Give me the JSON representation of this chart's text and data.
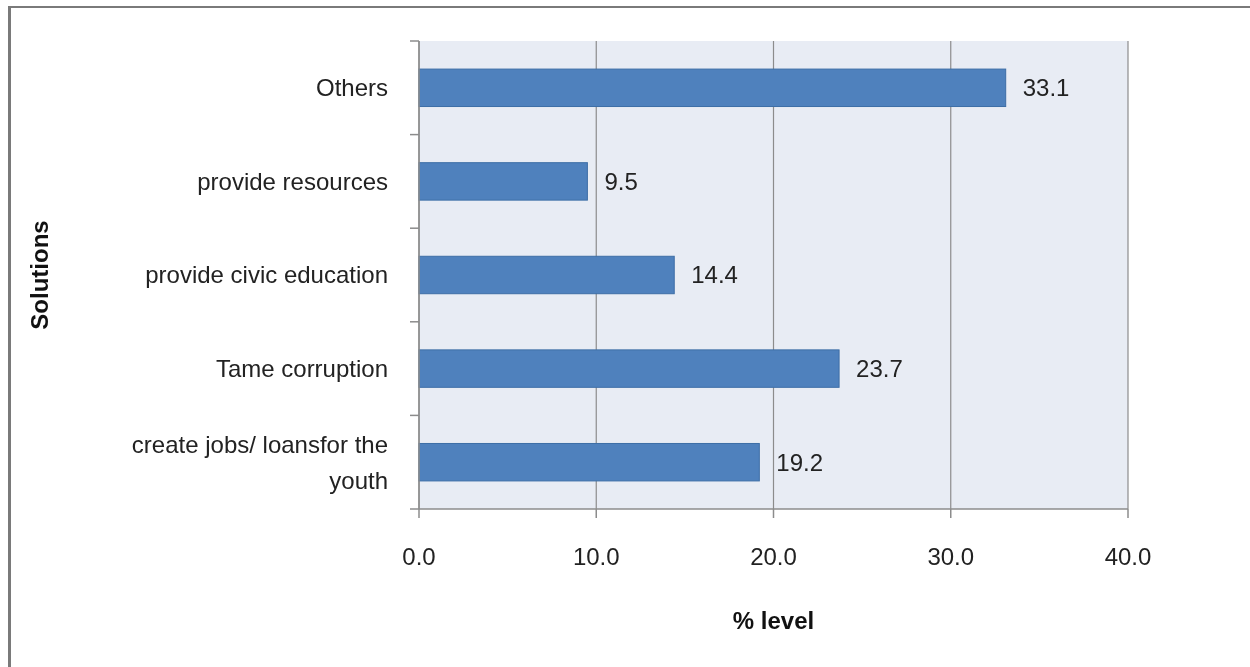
{
  "chart_data": {
    "type": "bar",
    "orientation": "horizontal",
    "categories": [
      "Others",
      "provide resources",
      "provide civic education",
      "Tame corruption",
      "create jobs/ loansfor the youth"
    ],
    "values": [
      33.1,
      9.5,
      14.4,
      23.7,
      19.2
    ],
    "color": "#4f81bd",
    "xlim": [
      0,
      40
    ],
    "xticks": [
      {
        "value": 0,
        "label": "0.0"
      },
      {
        "value": 10,
        "label": "10.0"
      },
      {
        "value": 20,
        "label": "20.0"
      },
      {
        "value": 30,
        "label": "30.0"
      },
      {
        "value": 40,
        "label": "40.0"
      }
    ],
    "xlabel": "% level",
    "ylabel": "Solutions",
    "grid": "x",
    "data_labels": true
  }
}
